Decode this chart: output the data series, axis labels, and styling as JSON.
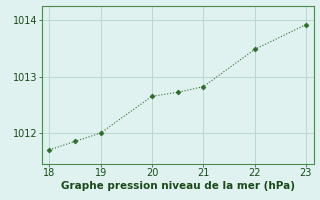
{
  "x": [
    18,
    18.5,
    19,
    20,
    20.5,
    21,
    22,
    23
  ],
  "y": [
    1011.7,
    1011.85,
    1012.0,
    1012.65,
    1012.72,
    1012.82,
    1013.48,
    1013.92
  ],
  "line_color": "#2d6a2d",
  "marker_color": "#2d6a2d",
  "bg_color": "#dff2f0",
  "grid_color": "#b8d8d0",
  "xlabel": "Graphe pression niveau de la mer (hPa)",
  "xlabel_color": "#1a4a1a",
  "xlabel_fontsize": 7.5,
  "tick_color": "#1a4a1a",
  "tick_fontsize": 7,
  "xlim": [
    17.85,
    23.15
  ],
  "ylim": [
    1011.45,
    1014.25
  ],
  "yticks": [
    1012,
    1013,
    1014
  ],
  "xticks": [
    18,
    19,
    20,
    21,
    22,
    23
  ],
  "spine_color": "#4a8a4a"
}
